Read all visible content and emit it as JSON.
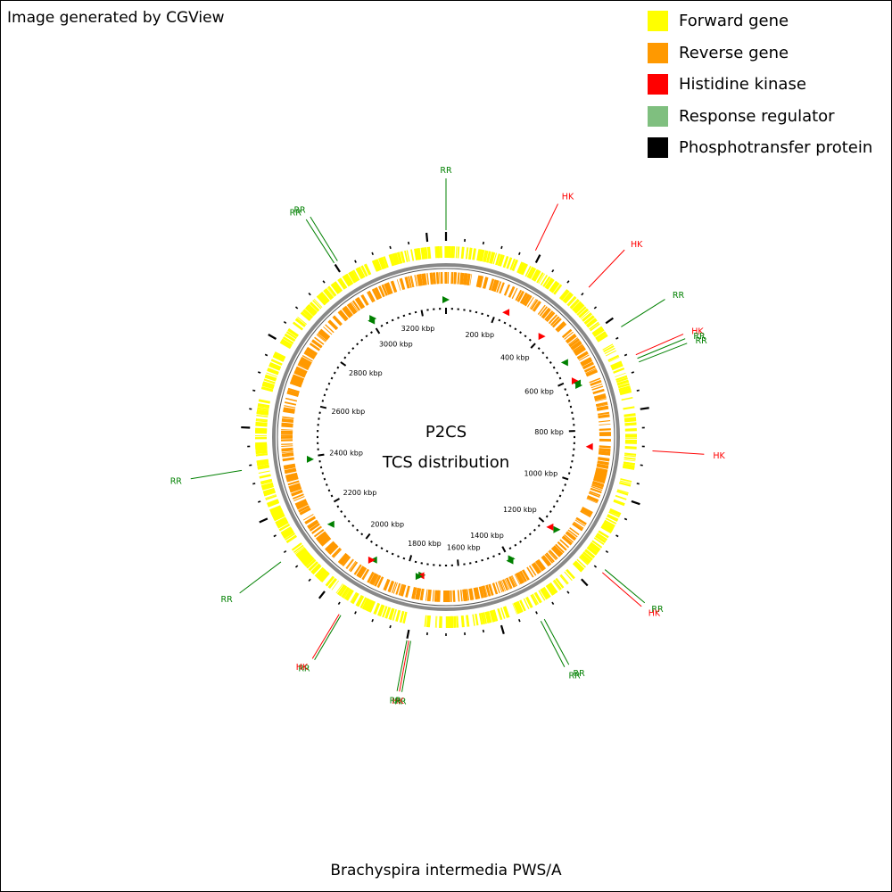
{
  "header_note": "Image generated by CGView",
  "legend": [
    {
      "label": "Forward gene",
      "color": "#ffff00"
    },
    {
      "label": "Reverse gene",
      "color": "#ff9900"
    },
    {
      "label": "Histidine kinase",
      "color": "#ff0000"
    },
    {
      "label": "Response regulator",
      "color": "#7fbf7f"
    },
    {
      "label": "Phosphotransfer protein",
      "color": "#000000"
    }
  ],
  "center": {
    "line1": "P2CS",
    "line2": "TCS distribution"
  },
  "organism": "Brachyspira intermedia PWS/A",
  "map": {
    "genome_kbp": 3300,
    "tick_labels": [
      "200 kbp",
      "400 kbp",
      "600 kbp",
      "800 kbp",
      "1000 kbp",
      "1200 kbp",
      "1400 kbp",
      "1600 kbp",
      "1800 kbp",
      "2000 kbp",
      "2200 kbp",
      "2400 kbp",
      "2600 kbp",
      "2800 kbp",
      "3000 kbp",
      "3200 kbp"
    ],
    "tick_values_kbp": [
      200,
      400,
      600,
      800,
      1000,
      1200,
      1400,
      1600,
      1800,
      2000,
      2200,
      2400,
      2600,
      2800,
      3000,
      3200
    ],
    "features": [
      {
        "label": "RR",
        "type": "RR",
        "kbp": 0
      },
      {
        "label": "HK",
        "type": "HK",
        "kbp": 235
      },
      {
        "label": "HK",
        "type": "HK",
        "kbp": 400
      },
      {
        "label": "RR",
        "type": "RR",
        "kbp": 530
      },
      {
        "label": "HK",
        "type": "HK",
        "kbp": 610
      },
      {
        "label": "RR",
        "type": "RR",
        "kbp": 620
      },
      {
        "label": "RR",
        "type": "RR",
        "kbp": 630
      },
      {
        "label": "HK",
        "type": "HK",
        "kbp": 860
      },
      {
        "label": "RR",
        "type": "RR",
        "kbp": 1190
      },
      {
        "label": "HK",
        "type": "HK",
        "kbp": 1200
      },
      {
        "label": "RR",
        "type": "RR",
        "kbp": 1390
      },
      {
        "label": "RR",
        "type": "RR",
        "kbp": 1400
      },
      {
        "label": "RR",
        "type": "RR",
        "kbp": 1740
      },
      {
        "label": "HK",
        "type": "HK",
        "kbp": 1745
      },
      {
        "label": "RR",
        "type": "RR",
        "kbp": 1750
      },
      {
        "label": "RR",
        "type": "RR",
        "kbp": 1930
      },
      {
        "label": "HK",
        "type": "HK",
        "kbp": 1935
      },
      {
        "label": "RR",
        "type": "RR",
        "kbp": 2135
      },
      {
        "label": "RR",
        "type": "RR",
        "kbp": 2390
      },
      {
        "label": "RR",
        "type": "RR",
        "kbp": 3000
      },
      {
        "label": "RR",
        "type": "RR",
        "kbp": 3010
      }
    ]
  }
}
